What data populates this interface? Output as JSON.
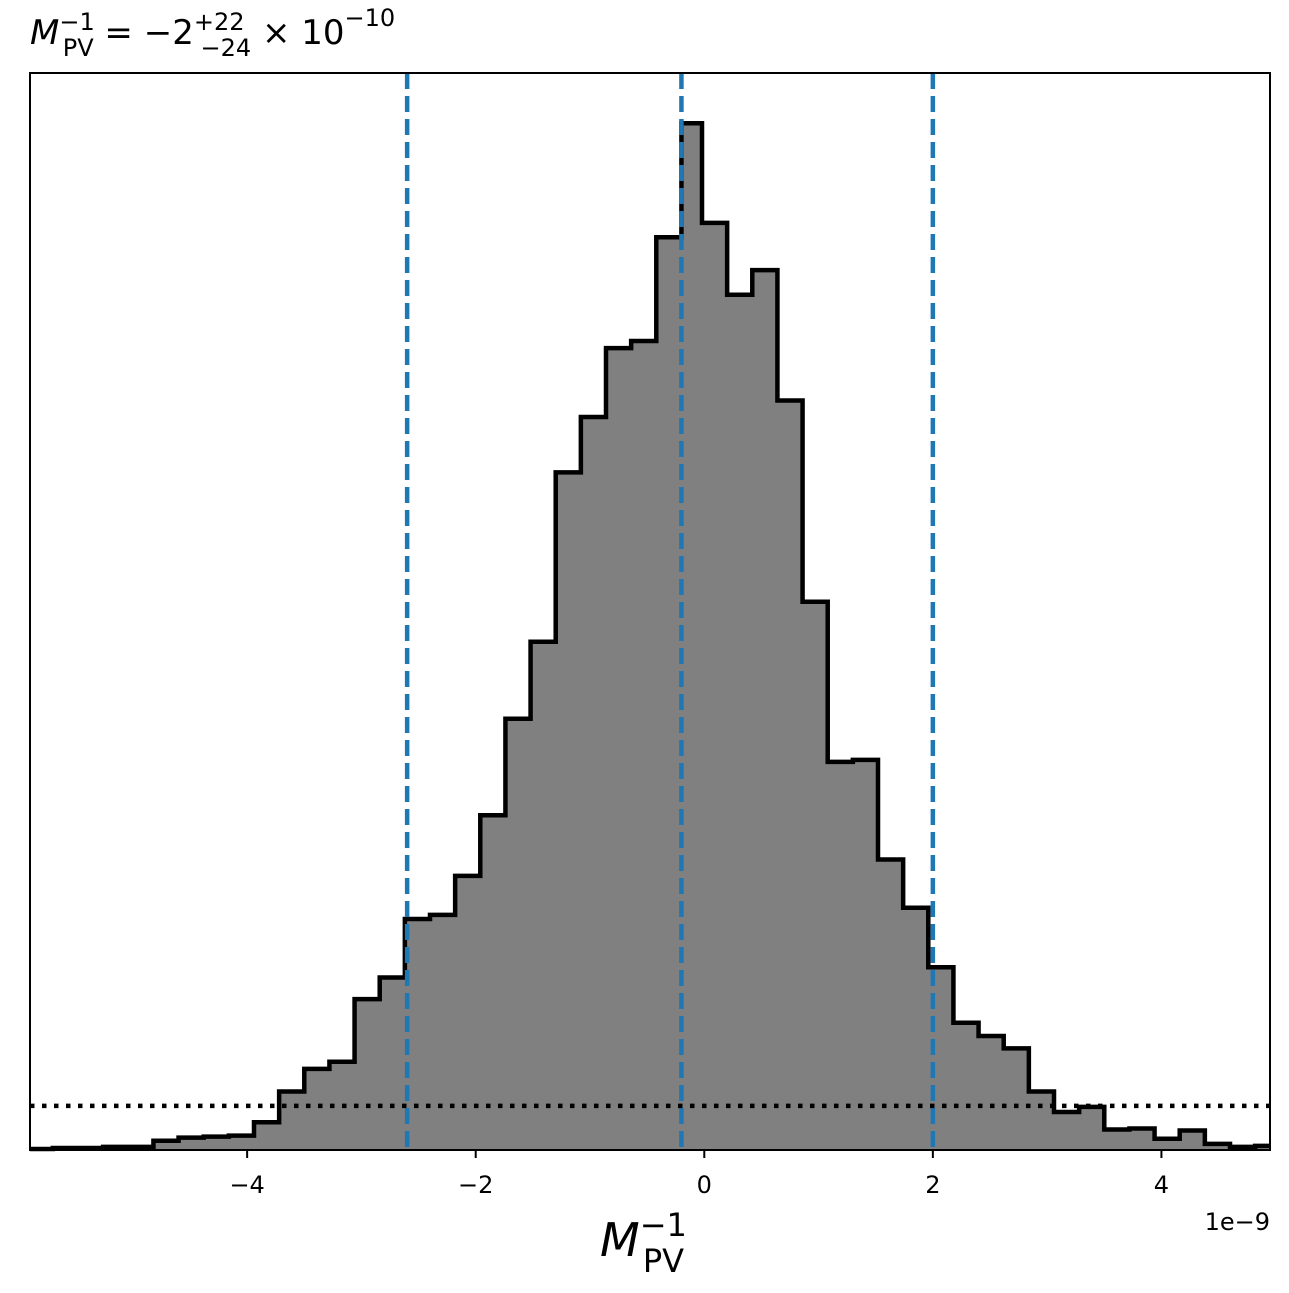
{
  "chart_data": {
    "type": "histogram",
    "title": {
      "symbol": "M",
      "symbol_sup": "−1",
      "symbol_sub": "PV",
      "equals": " = ",
      "median": "−2",
      "err_plus": "+22",
      "err_minus": "−24",
      "times": " × 10",
      "exponent": "−10"
    },
    "xlabel": {
      "symbol": "M",
      "sup": "−1",
      "sub": "PV"
    },
    "x_offset_label": "1e−9",
    "x_scale": 1e-09,
    "xlim": [
      -5.9,
      4.95
    ],
    "ylim": [
      0,
      1.049
    ],
    "xticks": [
      {
        "value": -4,
        "label": "−4"
      },
      {
        "value": -2,
        "label": "−2"
      },
      {
        "value": 0,
        "label": "0"
      },
      {
        "value": 2,
        "label": "2"
      },
      {
        "value": 4,
        "label": "4"
      }
    ],
    "bin_edges": [
      -5.92,
      -5.7,
      -5.48,
      -5.26,
      -5.04,
      -4.82,
      -4.6,
      -4.38,
      -4.16,
      -3.94,
      -3.72,
      -3.5,
      -3.28,
      -3.06,
      -2.84,
      -2.62,
      -2.4,
      -2.18,
      -1.96,
      -1.74,
      -1.52,
      -1.3,
      -1.08,
      -0.86,
      -0.64,
      -0.42,
      -0.2,
      -0.02,
      0.2,
      0.42,
      0.64,
      0.86,
      1.08,
      1.3,
      1.52,
      1.74,
      1.96,
      2.18,
      2.4,
      2.62,
      2.84,
      3.06,
      3.28,
      3.5,
      3.72,
      3.94,
      4.16,
      4.38,
      4.6,
      4.82,
      5.04
    ],
    "counts": [
      0.001,
      0.002,
      0.002,
      0.003,
      0.003,
      0.009,
      0.012,
      0.013,
      0.014,
      0.027,
      0.057,
      0.079,
      0.086,
      0.147,
      0.168,
      0.225,
      0.229,
      0.267,
      0.326,
      0.42,
      0.495,
      0.66,
      0.714,
      0.781,
      0.788,
      0.889,
      1.0,
      0.903,
      0.833,
      0.857,
      0.73,
      0.534,
      0.378,
      0.38,
      0.283,
      0.236,
      0.178,
      0.124,
      0.111,
      0.099,
      0.057,
      0.037,
      0.042,
      0.02,
      0.021,
      0.011,
      0.019,
      0.006,
      0.003,
      0.004
    ],
    "median_line": -0.2,
    "quantile_lines": [
      -2.6,
      2.0
    ],
    "threshold_line": 0.043,
    "fill_color": "#808080",
    "edge_color": "#000000",
    "vline_color": "#1f77b4",
    "hline_color": "#000000",
    "grid": false,
    "legend": "none"
  }
}
